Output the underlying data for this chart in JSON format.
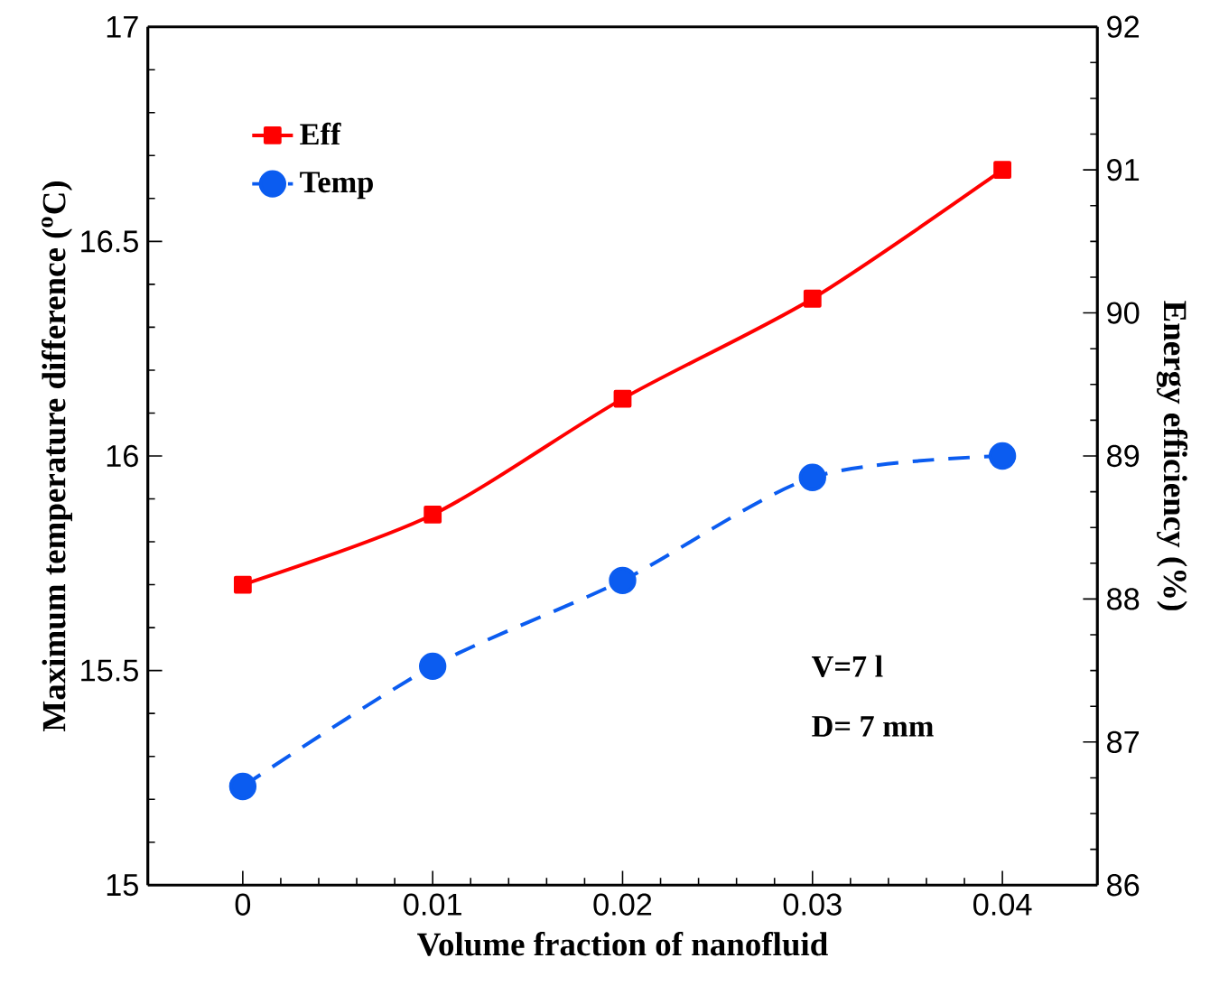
{
  "chart_data": {
    "type": "line",
    "xlabel": "Volume fraction of nanofluid",
    "ylabel": "Maximum temperature difference ($^{o}$C)",
    "y2label": "Energy efficiency (%)",
    "x": [
      0,
      0.01,
      0.02,
      0.03,
      0.04
    ],
    "series": [
      {
        "name": "Eff",
        "color": "#ff0000",
        "axis": "y2",
        "marker": "square",
        "line_style": "solid",
        "values": [
          88.1,
          88.59,
          89.4,
          90.1,
          91.0
        ]
      },
      {
        "name": "Temp",
        "color": "#0b5cf0",
        "axis": "y",
        "marker": "circle",
        "line_style": "dashed",
        "values": [
          15.23,
          15.51,
          15.71,
          15.95,
          16.0
        ]
      }
    ],
    "xlim": [
      -0.005,
      0.045
    ],
    "xticks": [
      0,
      0.01,
      0.02,
      0.03,
      0.04
    ],
    "ylim": [
      15,
      17
    ],
    "yticks": [
      15,
      15.5,
      16,
      16.5,
      17
    ],
    "y2lim": [
      86,
      92
    ],
    "y2ticks": [
      86,
      87,
      88,
      89,
      90,
      91,
      92
    ],
    "legend": "top left",
    "grid": false,
    "annotations": [
      "V=7 l",
      "D= 7 mm"
    ]
  }
}
